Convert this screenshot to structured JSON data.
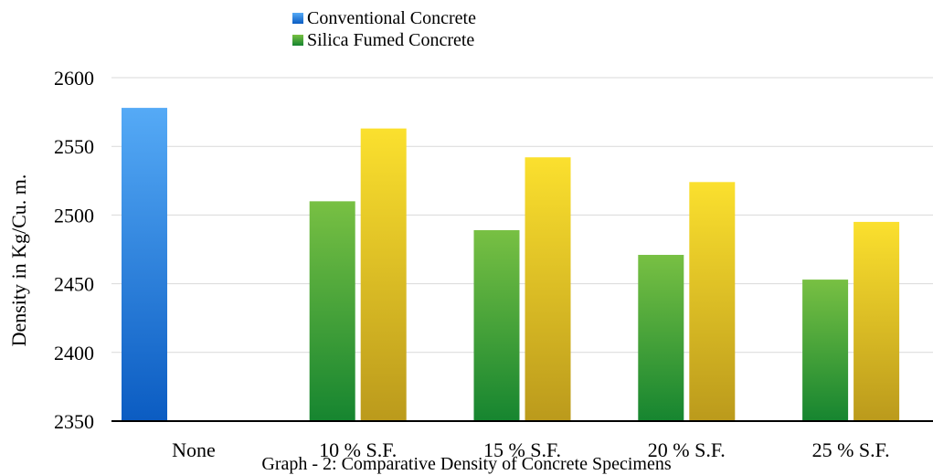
{
  "chart_data": {
    "type": "bar",
    "title": "",
    "caption": "Graph - 2: Comparative Density of Concrete Specimens",
    "ylabel": "Density in Kg/Cu. m.",
    "xlabel": "",
    "categories": [
      "None",
      "10 % S.F.",
      "15 % S.F.",
      "20 % S.F.",
      "25 % S.F."
    ],
    "ylim": [
      2350,
      2600
    ],
    "yticks": [
      2350,
      2400,
      2450,
      2500,
      2550,
      2600
    ],
    "grid": true,
    "legend_position": "top",
    "legend": [
      "Conventional Concrete",
      "Silica Fumed Concrete"
    ],
    "series": [
      {
        "name": "Conventional Concrete",
        "color": "#2e7fd6",
        "values": [
          2578,
          null,
          null,
          null,
          null
        ]
      },
      {
        "name": "Silica Fumed Concrete",
        "color": "#4aa83a",
        "values": [
          null,
          2510,
          2489,
          2471,
          2453
        ]
      },
      {
        "name": "",
        "color": "#e8c62a",
        "values": [
          null,
          2563,
          2542,
          2524,
          2495
        ]
      }
    ]
  }
}
